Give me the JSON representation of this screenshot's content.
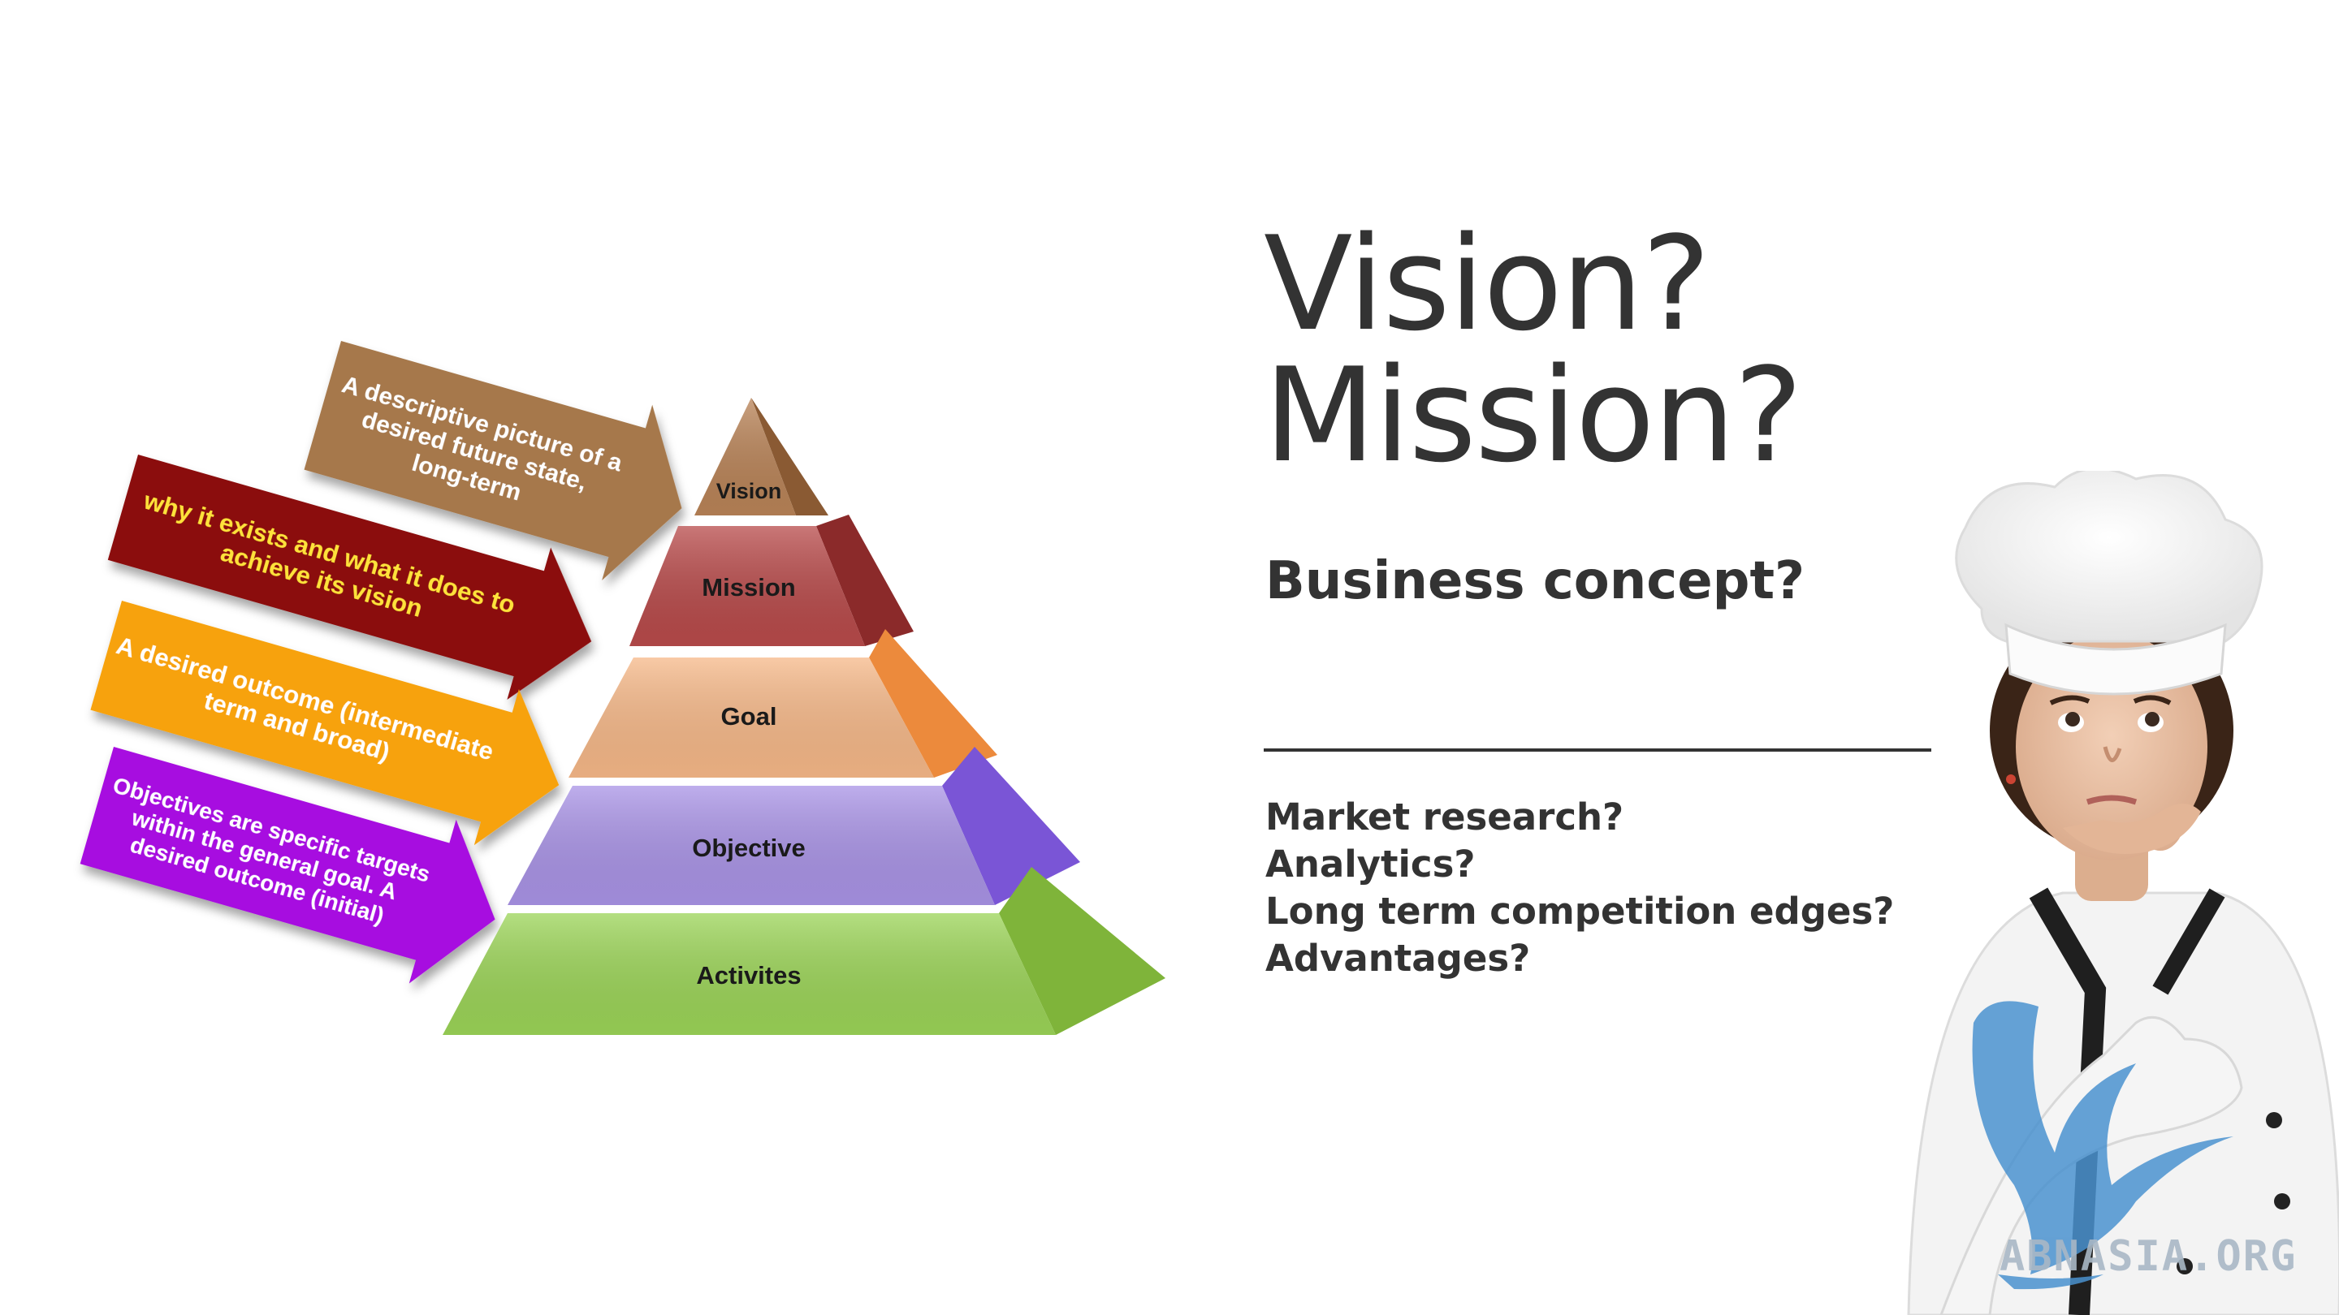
{
  "diagram": {
    "levels": [
      {
        "label": "Vision",
        "front": "#b98357",
        "side": "#8a5a33"
      },
      {
        "label": "Mission",
        "front": "#b84a4a",
        "side": "#8b2a2a"
      },
      {
        "label": "Goal",
        "front": "#f6b888",
        "side": "#ec8a3c"
      },
      {
        "label": "Objective",
        "front": "#a993e6",
        "side": "#7a55d6"
      },
      {
        "label": "Activites",
        "front": "#9bd457",
        "side": "#7fb43a"
      }
    ],
    "callouts": [
      {
        "lines": [
          "A descriptive picture of a",
          "desired future state,",
          "long-term"
        ],
        "fill": "#a6784c",
        "text_color": "#ffffff"
      },
      {
        "lines": [
          "why it exists and what it does to",
          "achieve its vision"
        ],
        "fill": "#8b0a0a",
        "text_color": "#ffe23a"
      },
      {
        "lines": [
          "A desired outcome (intermediate",
          "term and broad)"
        ],
        "fill": "#f7a20a",
        "text_color": "#ffffff"
      },
      {
        "lines": [
          "Objectives are specific targets",
          "within the general goal. A",
          "desired outcome (initial)"
        ],
        "fill": "#a70be0",
        "text_color": "#ffffff"
      }
    ]
  },
  "title": {
    "line1": "Vision?",
    "line2": "Mission?"
  },
  "subtitle": "Business concept?",
  "questions": [
    "Market research?",
    "Analytics?",
    "Long term competition edges?",
    "Advantages?"
  ],
  "watermark": "ABNASIA.ORG"
}
